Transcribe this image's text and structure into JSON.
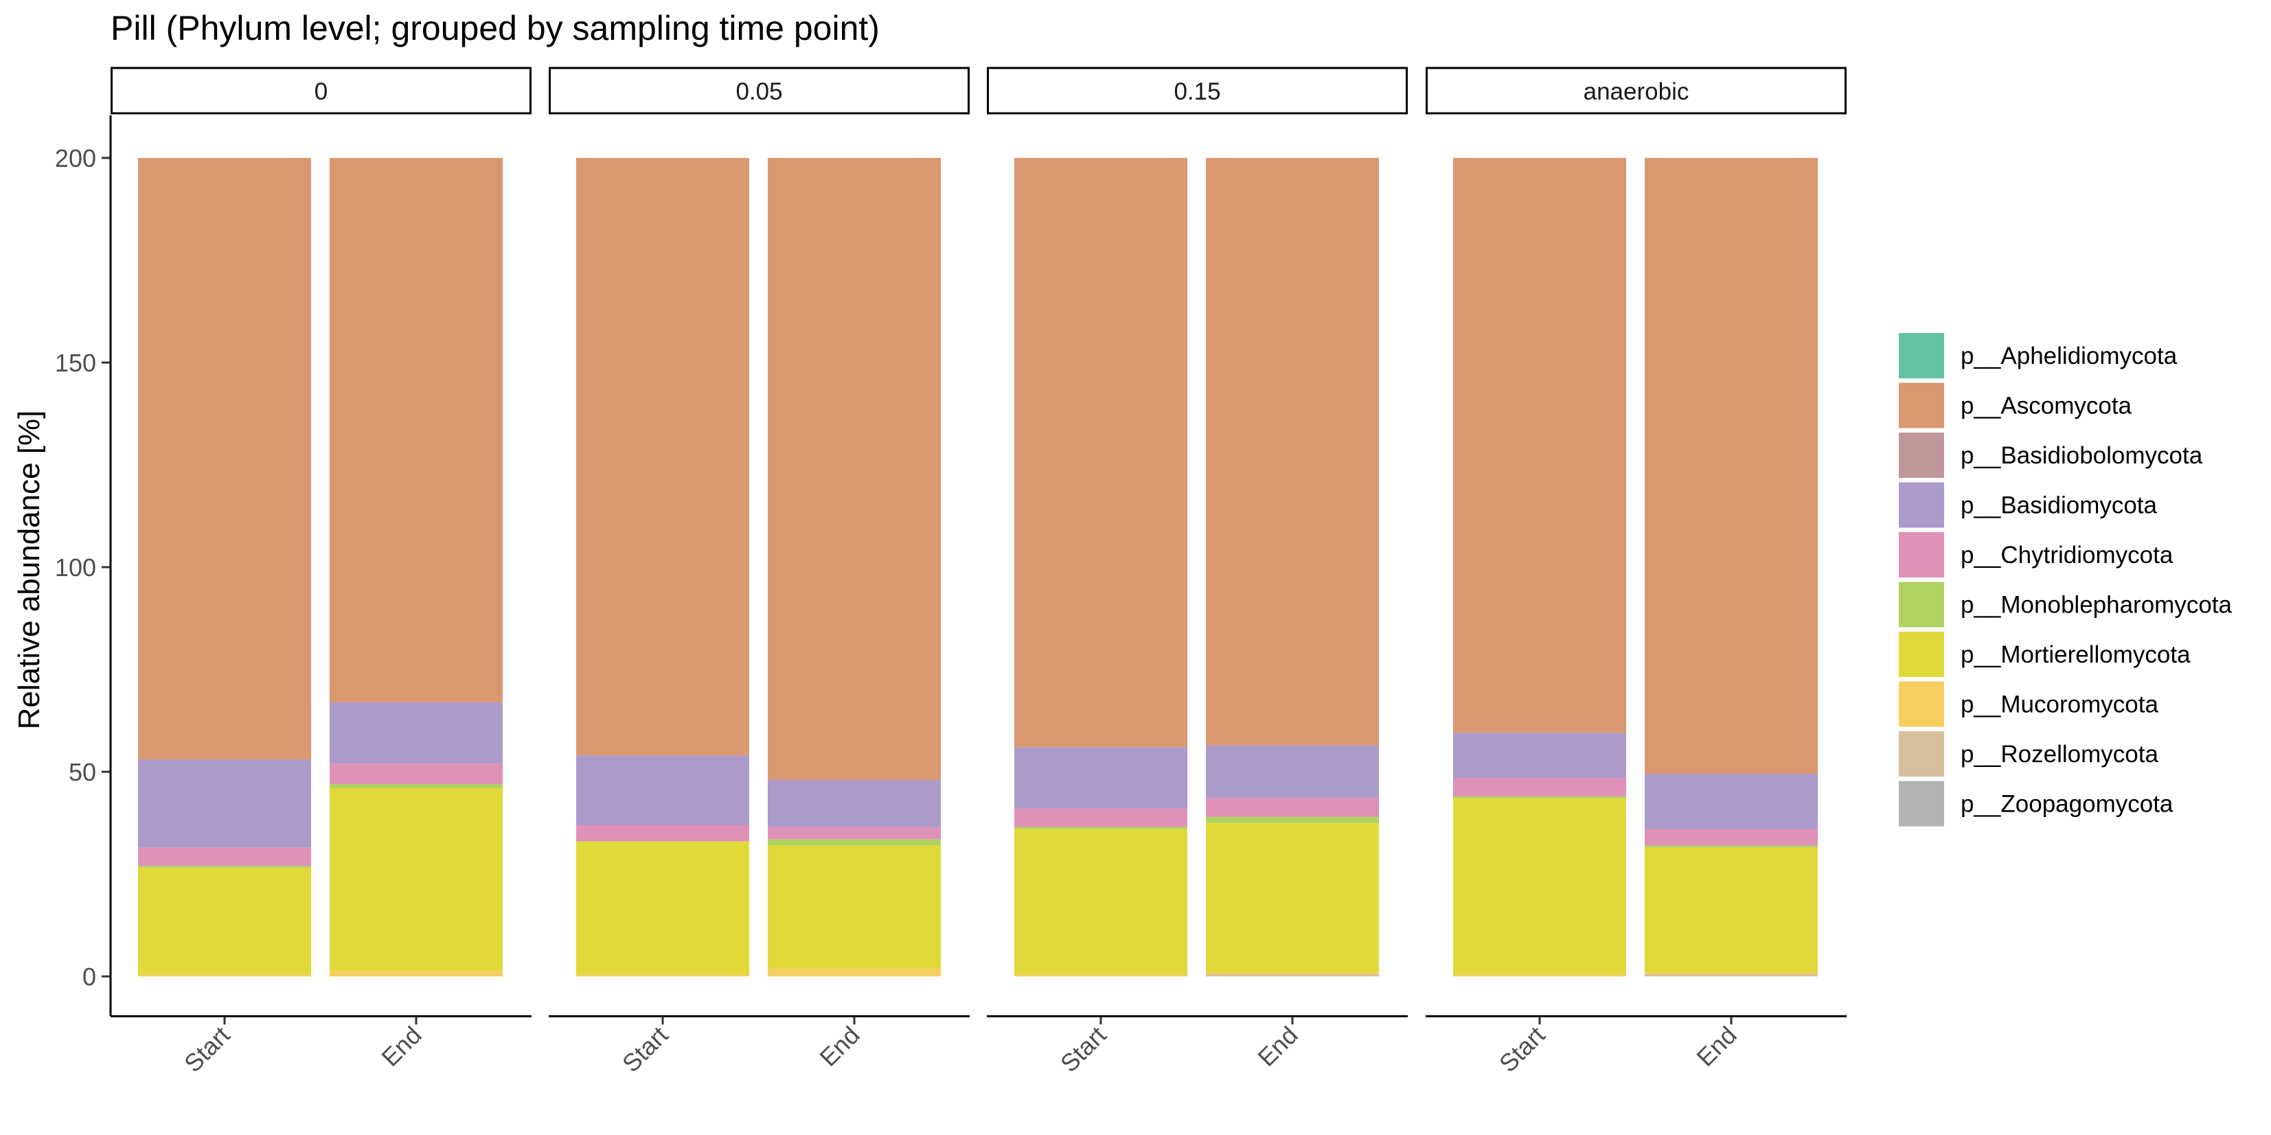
{
  "chart_data": {
    "type": "bar",
    "stacked": true,
    "title": "Pill (Phylum level; grouped by sampling time point)",
    "xlabel": "",
    "ylabel": "Relative abundance [%]",
    "ylim": [
      0,
      210
    ],
    "yticks": [
      0,
      50,
      100,
      150,
      200
    ],
    "grid": false,
    "legend_position": "right",
    "categories": [
      "Start",
      "End"
    ],
    "facets": [
      {
        "label": "0",
        "bars": [
          {
            "category": "Start",
            "values": {
              "p__Mucoromycota": 0.5,
              "p__Mortierellomycota": 26,
              "p__Monoblepharomycota": 0.5,
              "p__Chytridiomycota": 4.5,
              "p__Basidiomycota": 21.5,
              "p__Ascomycota": 147
            }
          },
          {
            "category": "End",
            "values": {
              "p__Mucoromycota": 1.5,
              "p__Mortierellomycota": 44.5,
              "p__Monoblepharomycota": 1,
              "p__Chytridiomycota": 5,
              "p__Basidiomycota": 15,
              "p__Ascomycota": 133
            }
          }
        ]
      },
      {
        "label": "0.05",
        "bars": [
          {
            "category": "Start",
            "values": {
              "p__Mucoromycota": 0.5,
              "p__Mortierellomycota": 32.5,
              "p__Chytridiomycota": 4,
              "p__Basidiomycota": 17,
              "p__Ascomycota": 146
            }
          },
          {
            "category": "End",
            "values": {
              "p__Mucoromycota": 2,
              "p__Mortierellomycota": 30,
              "p__Monoblepharomycota": 1.5,
              "p__Chytridiomycota": 3,
              "p__Basidiomycota": 11.5,
              "p__Ascomycota": 152
            }
          }
        ]
      },
      {
        "label": "0.15",
        "bars": [
          {
            "category": "Start",
            "values": {
              "p__Mucoromycota": 0.5,
              "p__Mortierellomycota": 35.5,
              "p__Monoblepharomycota": 0.5,
              "p__Chytridiomycota": 4.5,
              "p__Basidiomycota": 15,
              "p__Ascomycota": 144
            }
          },
          {
            "category": "End",
            "values": {
              "p__Rozellomycota": 0.5,
              "p__Mucoromycota": 0.5,
              "p__Mortierellomycota": 36.5,
              "p__Monoblepharomycota": 1.5,
              "p__Chytridiomycota": 4.5,
              "p__Basidiomycota": 13,
              "p__Ascomycota": 143.5
            }
          }
        ]
      },
      {
        "label": "anaerobic",
        "bars": [
          {
            "category": "Start",
            "values": {
              "p__Mucoromycota": 0.5,
              "p__Mortierellomycota": 43,
              "p__Monoblepharomycota": 0.5,
              "p__Chytridiomycota": 4.5,
              "p__Basidiomycota": 11,
              "p__Ascomycota": 140.5
            }
          },
          {
            "category": "End",
            "values": {
              "p__Rozellomycota": 0.5,
              "p__Mucoromycota": 0.5,
              "p__Mortierellomycota": 30.5,
              "p__Monoblepharomycota": 0.5,
              "p__Chytridiomycota": 4,
              "p__Basidiomycota": 13.5,
              "p__Ascomycota": 150.5
            }
          }
        ]
      }
    ],
    "series": [
      {
        "name": "p__Aphelidiomycota",
        "color": "#66c2a5"
      },
      {
        "name": "p__Ascomycota",
        "color": "#d99870"
      },
      {
        "name": "p__Basidiobolomycota",
        "color": "#c09799"
      },
      {
        "name": "p__Basidiomycota",
        "color": "#ac9acb"
      },
      {
        "name": "p__Chytridiomycota",
        "color": "#e091b8"
      },
      {
        "name": "p__Monoblepharomycota",
        "color": "#b0d25f"
      },
      {
        "name": "p__Mortierellomycota",
        "color": "#e1d93a"
      },
      {
        "name": "p__Mucoromycota",
        "color": "#f4cf60"
      },
      {
        "name": "p__Rozellomycota",
        "color": "#d8c09d"
      },
      {
        "name": "p__Zoopagomycota",
        "color": "#b3b3b3"
      }
    ]
  }
}
